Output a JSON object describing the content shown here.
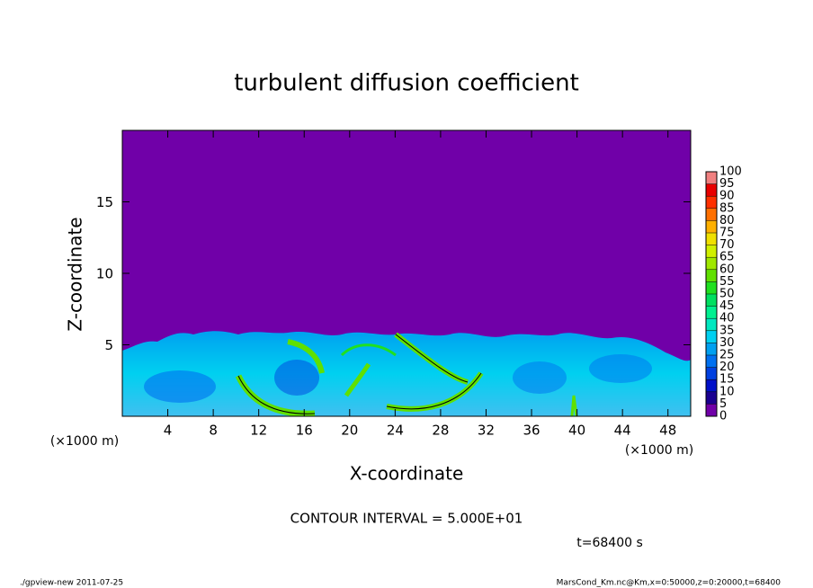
{
  "chart_data": {
    "type": "contour",
    "title": "turbulent diffusion coefficient",
    "x_label": "X-coordinate",
    "y_label": "Z-coordinate",
    "x_unit": "(×1000 m)",
    "xlim": [
      0,
      50
    ],
    "xticks": [
      4,
      8,
      12,
      16,
      20,
      24,
      28,
      32,
      36,
      40,
      44,
      48
    ],
    "ylim": [
      0,
      20
    ],
    "yticks": [
      5,
      10,
      15
    ],
    "colorbar": {
      "levels": [
        0,
        5,
        10,
        15,
        20,
        25,
        30,
        35,
        40,
        45,
        50,
        55,
        60,
        65,
        70,
        75,
        80,
        85,
        90,
        95,
        100
      ],
      "colors": [
        "#7000a8",
        "#1a0090",
        "#0010c8",
        "#0040e0",
        "#0070f0",
        "#00a0f0",
        "#00d0f0",
        "#00e8c0",
        "#00f090",
        "#00e060",
        "#20e020",
        "#60e000",
        "#a0e800",
        "#d0f000",
        "#f0e000",
        "#ffb000",
        "#ff7000",
        "#ff3000",
        "#e80000",
        "#f08080"
      ]
    },
    "contour_interval": "CONTOUR INTERVAL = 5.000E+01",
    "time_label": "t=68400 s"
  },
  "footer": {
    "left": "./gpview-new   2011-07-25",
    "right": "MarsCond_Km.nc@Km,x=0:50000,z=0:20000,t=68400"
  }
}
